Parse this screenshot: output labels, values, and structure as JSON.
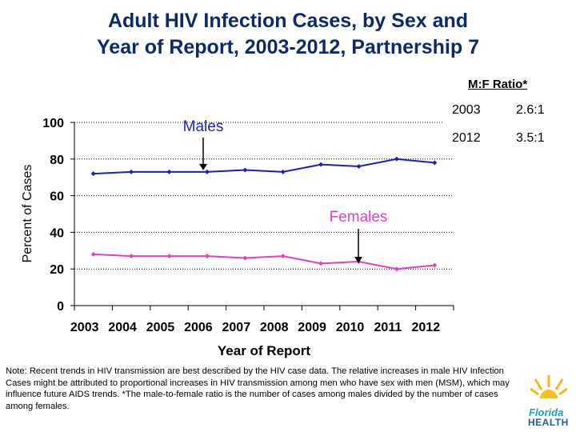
{
  "title_line1": "Adult HIV Infection Cases, by Sex and",
  "title_line2": "Year of Report, 2003-2012, Partnership 7",
  "ratio": {
    "title": "M:F Ratio*",
    "rows": [
      {
        "year": "2003",
        "value": "2.6:1"
      },
      {
        "year": "2012",
        "value": "3.5:1"
      }
    ]
  },
  "note": "Note:  Recent trends in HIV transmission are best described by the HIV case data.  The relative increases in male HIV Infection Cases might be attributed to proportional increases in HIV transmission among men who have sex with men (MSM), which may influence future AIDS trends. *The male-to-female ratio is the number of cases among males divided by the number of cases among females.",
  "logo": {
    "line1": "Florida",
    "line2": "HEALTH"
  },
  "chart_data": {
    "type": "line",
    "title": "Adult HIV Infection Cases, by Sex and Year of Report, 2003-2012, Partnership 7",
    "xlabel": "Year of Report",
    "ylabel": "Percent of Cases",
    "categories": [
      "2003",
      "2004",
      "2005",
      "2006",
      "2007",
      "2008",
      "2009",
      "2010",
      "2011",
      "2012"
    ],
    "ylim": [
      0,
      100
    ],
    "yticks": [
      "0",
      "20",
      "40",
      "60",
      "80",
      "100"
    ],
    "grid": "dotted horizontal",
    "series": [
      {
        "name": "Males",
        "color": "#1f1fb4",
        "values": [
          72,
          73,
          73,
          73,
          74,
          73,
          77,
          76,
          80,
          78
        ]
      },
      {
        "name": "Females",
        "color": "#e040c8",
        "values": [
          28,
          27,
          27,
          27,
          26,
          27,
          23,
          24,
          20,
          22
        ]
      }
    ]
  }
}
